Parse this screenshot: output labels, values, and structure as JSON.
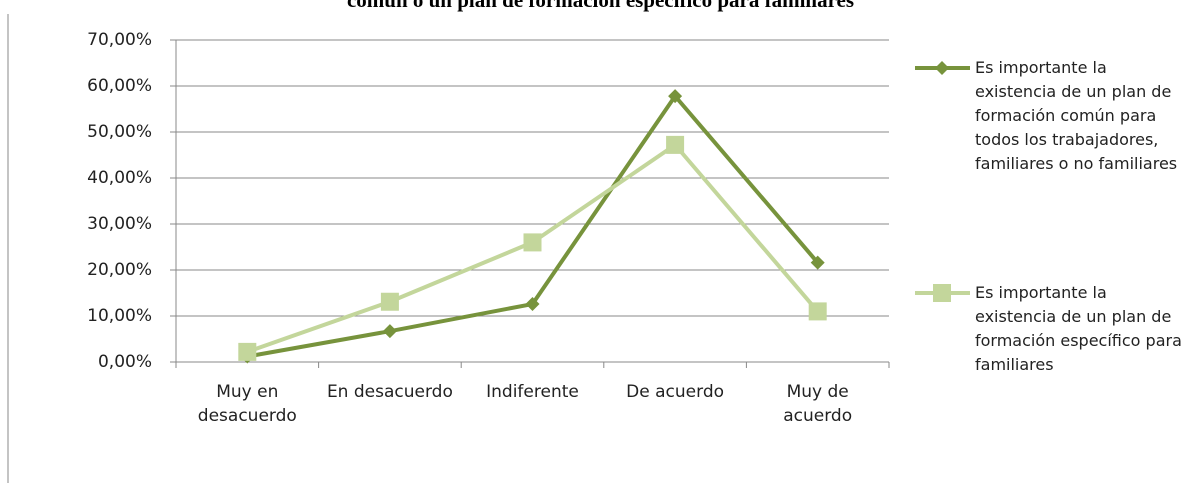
{
  "chart_data": {
    "type": "line",
    "title": "común o un plan de formación específico para familiares",
    "categories": [
      "Muy en desacuerdo",
      "En desacuerdo",
      "Indiferente",
      "De acuerdo",
      "Muy de acuerdo"
    ],
    "series": [
      {
        "name": "Es importante la existencia de un plan de formación común para todos los trabajadores, familiares o no familiares",
        "color": "#77933c",
        "marker": "diamond",
        "values": [
          1.2,
          6.7,
          12.6,
          57.8,
          21.6
        ]
      },
      {
        "name": "Es importante la existencia de un plan de formación específico para familiares",
        "color": "#c3d69b",
        "marker": "square",
        "values": [
          2.2,
          13.1,
          26.0,
          47.2,
          11.0
        ]
      }
    ],
    "ylim": [
      0,
      70
    ],
    "yticks": [
      {
        "value": 0,
        "label": "0,00%"
      },
      {
        "value": 10,
        "label": "10,00%"
      },
      {
        "value": 20,
        "label": "20,00%"
      },
      {
        "value": 30,
        "label": "30,00%"
      },
      {
        "value": 40,
        "label": "40,00%"
      },
      {
        "value": 50,
        "label": "50,00%"
      },
      {
        "value": 60,
        "label": "60,00%"
      },
      {
        "value": 70,
        "label": "70,00%"
      }
    ],
    "grid": true,
    "legend": "right"
  }
}
